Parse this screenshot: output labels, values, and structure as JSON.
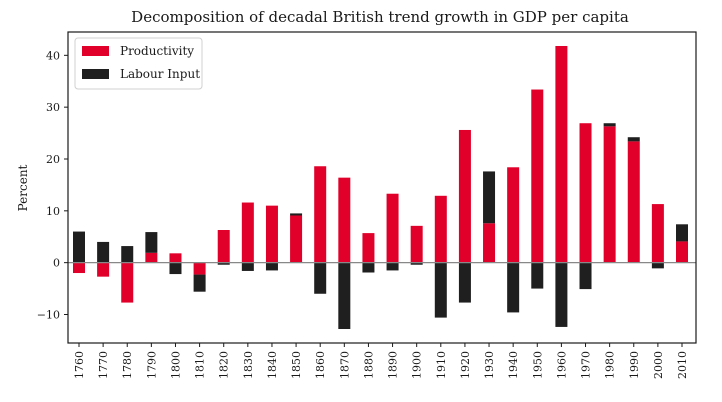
{
  "chart_data": {
    "type": "bar",
    "stacked": true,
    "title": "Decomposition of decadal British trend growth in GDP per capita",
    "xlabel": "",
    "ylabel": "Percent",
    "ylim": [
      -15.5,
      44.5
    ],
    "yticks": [
      -10,
      0,
      10,
      20,
      30,
      40
    ],
    "grid": false,
    "legend_position": "top-left",
    "categories": [
      "1760",
      "1770",
      "1780",
      "1790",
      "1800",
      "1810",
      "1820",
      "1830",
      "1840",
      "1850",
      "1860",
      "1870",
      "1880",
      "1890",
      "1900",
      "1910",
      "1920",
      "1930",
      "1940",
      "1950",
      "1960",
      "1970",
      "1980",
      "1990",
      "2000",
      "2010"
    ],
    "series": [
      {
        "name": "Productivity",
        "color": "#e0002a",
        "values": [
          -2.0,
          -2.7,
          -7.7,
          1.9,
          1.8,
          -2.3,
          6.3,
          11.6,
          11.0,
          9.1,
          18.6,
          16.4,
          5.7,
          13.3,
          7.1,
          12.9,
          25.6,
          7.6,
          18.4,
          33.4,
          41.8,
          26.9,
          26.3,
          23.4,
          11.3,
          4.1
        ]
      },
      {
        "name": "Labour Input",
        "color": "#1f1f1f",
        "values": [
          6.0,
          4.0,
          3.2,
          4.0,
          -2.2,
          -3.3,
          -0.4,
          -1.6,
          -1.5,
          0.4,
          -6.0,
          -12.8,
          -1.9,
          -1.5,
          -0.4,
          -10.6,
          -7.7,
          10.0,
          -9.6,
          -5.0,
          -12.4,
          -5.1,
          0.6,
          0.8,
          -1.1,
          3.3
        ]
      }
    ]
  }
}
